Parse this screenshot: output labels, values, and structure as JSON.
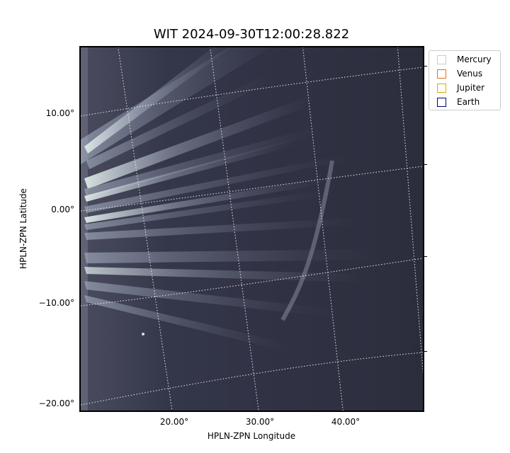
{
  "title": "WIT 2024-09-30T12:00:28.822",
  "axes": {
    "xlabel": "HPLN-ZPN Longitude",
    "ylabel": "HPLN-ZPN Latitude",
    "y_ticks": [
      "10.00°",
      "0.00°",
      "−10.00°",
      "−20.00°"
    ],
    "x_ticks": [
      "20.00°",
      "30.00°",
      "40.00°"
    ]
  },
  "legend": {
    "items": [
      {
        "label": "Mercury",
        "color": "#cccccc"
      },
      {
        "label": "Venus",
        "color": "#e07020"
      },
      {
        "label": "Jupiter",
        "color": "#e0a800"
      },
      {
        "label": "Earth",
        "color": "#000080"
      }
    ]
  },
  "image": {
    "colormap": "bone",
    "background": "#2b2c38",
    "grid_style": "dotted white"
  }
}
